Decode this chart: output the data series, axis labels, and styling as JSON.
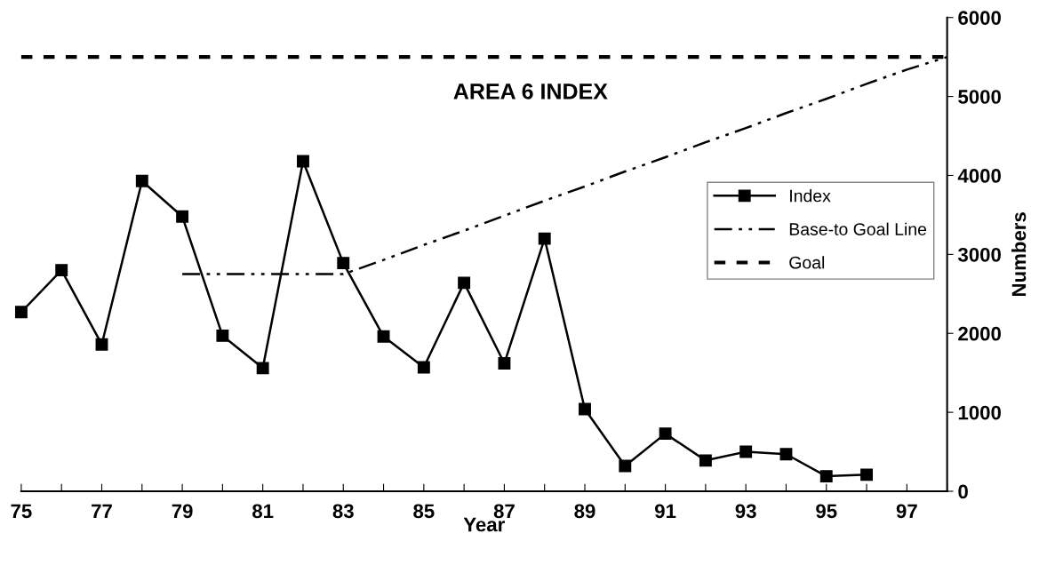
{
  "chart_data": {
    "type": "line",
    "title": "AREA 6 INDEX",
    "xlabel": "Year",
    "ylabel": "Numbers",
    "xlim": [
      75,
      98
    ],
    "xticks": [
      75,
      {
        "value": 76,
        "label": null
      },
      77,
      {
        "value": 78,
        "label": null
      },
      79,
      {
        "value": 80,
        "label": null
      },
      81,
      {
        "value": 82,
        "label": null
      },
      83,
      {
        "value": 84,
        "label": null
      },
      85,
      {
        "value": 86,
        "label": null
      },
      87,
      {
        "value": 88,
        "label": null
      },
      89,
      {
        "value": 90,
        "label": null
      },
      91,
      {
        "value": 92,
        "label": null
      },
      93,
      {
        "value": 94,
        "label": null
      },
      95,
      {
        "value": 96,
        "label": null
      },
      97,
      {
        "value": 98,
        "label": null
      }
    ],
    "ylim": [
      0,
      6000
    ],
    "yticks": [
      0,
      1000,
      2000,
      3000,
      4000,
      5000,
      6000
    ],
    "grid": false,
    "legend": "right",
    "series": [
      {
        "name": "Index",
        "color": "#000000",
        "marker": "square",
        "line_style": "solid",
        "x": [
          75,
          76,
          77,
          78,
          79,
          80,
          81,
          82,
          83,
          84,
          85,
          86,
          87,
          88,
          89,
          90,
          91,
          92,
          93,
          94,
          95,
          96
        ],
        "values": [
          2270,
          2800,
          1860,
          3930,
          3480,
          1970,
          1560,
          4180,
          2890,
          1960,
          1570,
          2640,
          1620,
          3200,
          1040,
          320,
          730,
          390,
          500,
          470,
          190,
          210
        ]
      },
      {
        "name": "Base-to Goal Line",
        "color": "#000000",
        "marker": "none",
        "line_style": "dashdotdot",
        "x": [
          79,
          83,
          84,
          85,
          86,
          87,
          88,
          89,
          90,
          91,
          92,
          93,
          94,
          95,
          96,
          97,
          98
        ],
        "values": [
          2750,
          2750,
          2930,
          3120,
          3300,
          3490,
          3680,
          3860,
          4050,
          4230,
          4420,
          4600,
          4790,
          4970,
          5160,
          5340,
          5500
        ]
      },
      {
        "name": "Goal",
        "color": "#000000",
        "marker": "none",
        "line_style": "dashed",
        "x": [
          75,
          98
        ],
        "values": [
          5500,
          5500
        ]
      }
    ]
  }
}
